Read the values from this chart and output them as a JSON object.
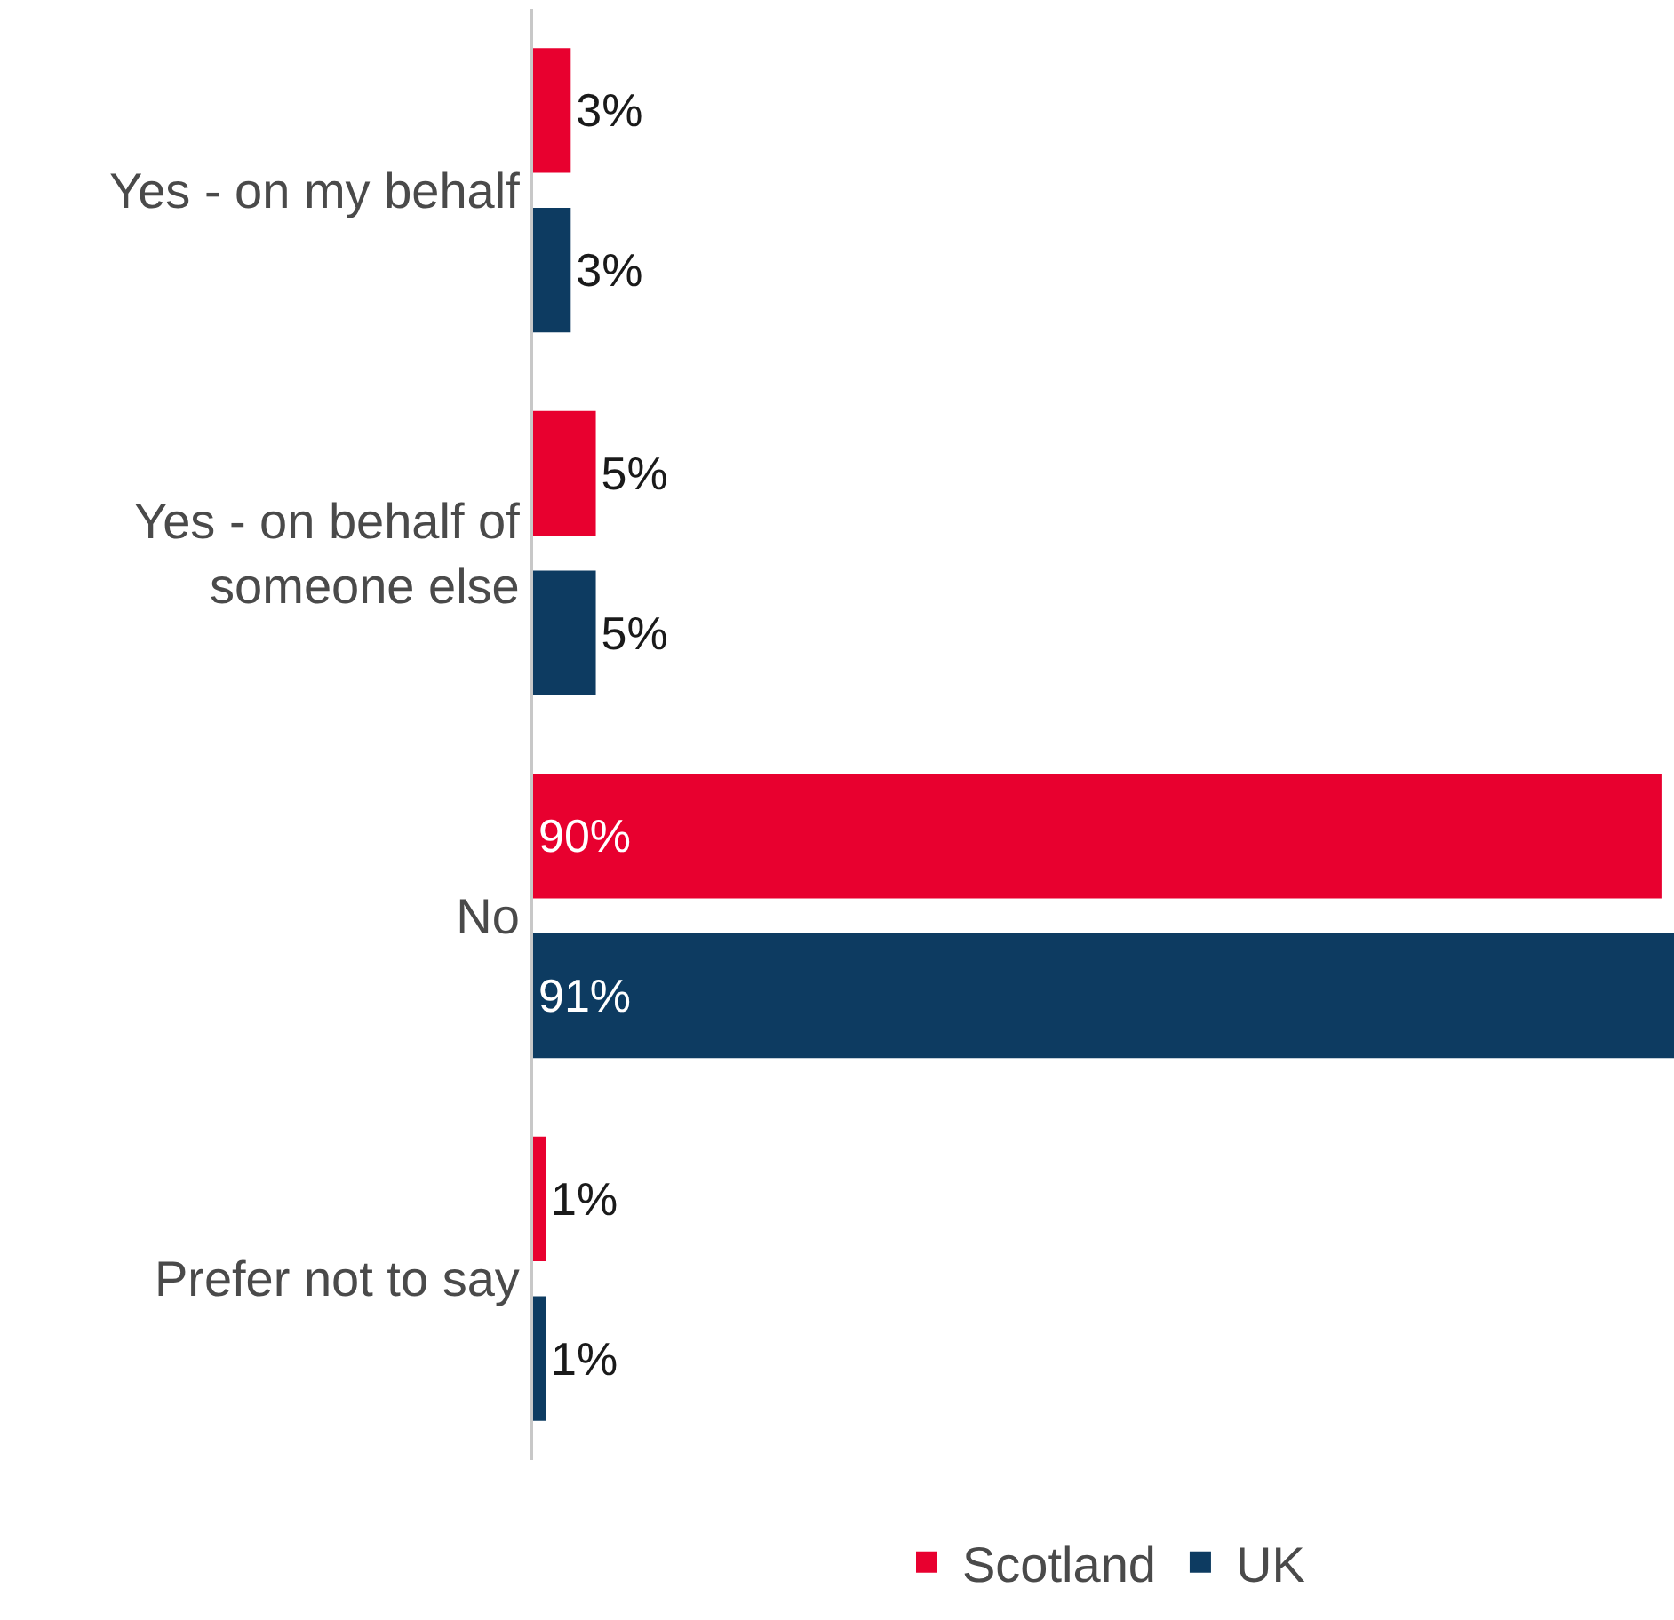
{
  "chart_data": {
    "type": "bar",
    "orientation": "horizontal",
    "categories": [
      "Yes - on my behalf",
      "Yes - on behalf of someone else",
      "No",
      "Prefer not to say"
    ],
    "series": [
      {
        "name": "Scotland",
        "color": "#e8002f",
        "values": [
          3,
          5,
          90,
          1
        ],
        "value_labels": [
          "3%",
          "5%",
          "90%",
          "1%"
        ]
      },
      {
        "name": "UK",
        "color": "#0d3b61",
        "values": [
          3,
          5,
          91,
          1
        ],
        "value_labels": [
          "3%",
          "5%",
          "91%",
          "1%"
        ]
      }
    ],
    "legend": "bottom",
    "grid": false
  }
}
